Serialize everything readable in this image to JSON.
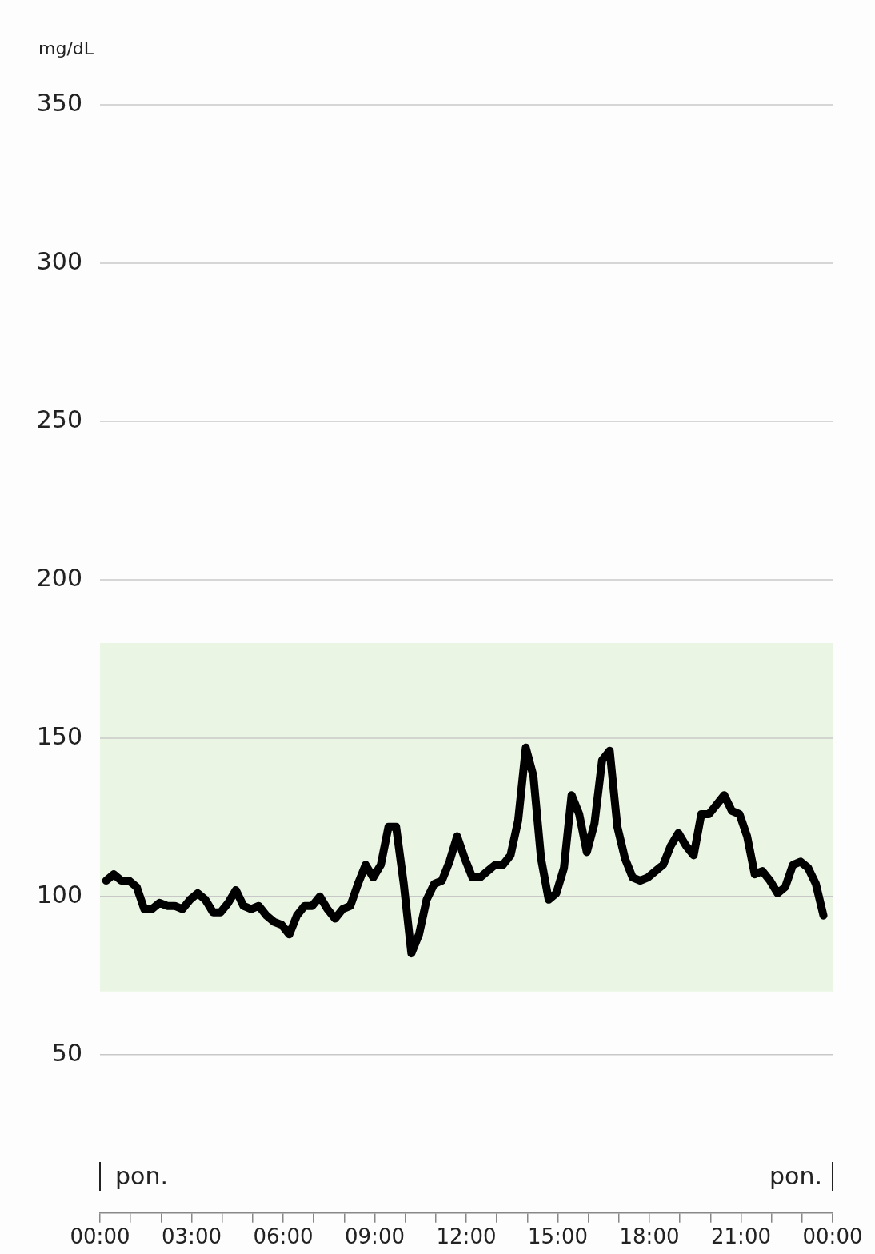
{
  "chart_data": {
    "type": "line",
    "ylabel": "mg/dL",
    "x": [
      0.2,
      0.45,
      0.7,
      0.95,
      1.2,
      1.45,
      1.7,
      1.95,
      2.2,
      2.45,
      2.7,
      2.95,
      3.2,
      3.45,
      3.7,
      3.95,
      4.2,
      4.45,
      4.7,
      4.95,
      5.2,
      5.45,
      5.7,
      5.95,
      6.2,
      6.45,
      6.7,
      6.95,
      7.2,
      7.45,
      7.7,
      7.95,
      8.2,
      8.45,
      8.7,
      8.95,
      9.2,
      9.45,
      9.7,
      9.95,
      10.2,
      10.45,
      10.7,
      10.95,
      11.2,
      11.45,
      11.7,
      11.95,
      12.2,
      12.45,
      12.7,
      12.95,
      13.2,
      13.45,
      13.7,
      13.95,
      14.2,
      14.45,
      14.7,
      14.95,
      15.2,
      15.45,
      15.7,
      15.95,
      16.2,
      16.45,
      16.7,
      16.95,
      17.2,
      17.45,
      17.7,
      17.95,
      18.2,
      18.45,
      18.7,
      18.95,
      19.2,
      19.45,
      19.7,
      19.95,
      20.2,
      20.45,
      20.7,
      20.95,
      21.2,
      21.45,
      21.7,
      21.95,
      22.2,
      22.45,
      22.7,
      22.95,
      23.2,
      23.45,
      23.7
    ],
    "series": [
      {
        "color": "#000000",
        "values": [
          105,
          107,
          105,
          105,
          103,
          96,
          96,
          98,
          97,
          97,
          96,
          99,
          101,
          99,
          95,
          95,
          98,
          102,
          97,
          96,
          97,
          94,
          92,
          91,
          88,
          94,
          97,
          97,
          100,
          96,
          93,
          96,
          97,
          104,
          110,
          106,
          110,
          122,
          122,
          104,
          82,
          88,
          99,
          104,
          105,
          111,
          119,
          112,
          106,
          106,
          108,
          110,
          110,
          113,
          124,
          147,
          138,
          112,
          99,
          101,
          109,
          132,
          126,
          114,
          123,
          143,
          146,
          122,
          112,
          106,
          105,
          106,
          108,
          110,
          116,
          120,
          116,
          113,
          126,
          126,
          129,
          132,
          127,
          126,
          119,
          107,
          108,
          105,
          101,
          103,
          110,
          111,
          109,
          104,
          94
        ]
      }
    ],
    "xlim": [
      0,
      24
    ],
    "xticks": [
      {
        "value": 0,
        "label": "00:00"
      },
      {
        "value": 1,
        "label": null
      },
      {
        "value": 2,
        "label": null
      },
      {
        "value": 3,
        "label": "03:00"
      },
      {
        "value": 4,
        "label": null
      },
      {
        "value": 5,
        "label": null
      },
      {
        "value": 6,
        "label": "06:00"
      },
      {
        "value": 7,
        "label": null
      },
      {
        "value": 8,
        "label": null
      },
      {
        "value": 9,
        "label": "09:00"
      },
      {
        "value": 10,
        "label": null
      },
      {
        "value": 11,
        "label": null
      },
      {
        "value": 12,
        "label": "12:00"
      },
      {
        "value": 13,
        "label": null
      },
      {
        "value": 14,
        "label": null
      },
      {
        "value": 15,
        "label": "15:00"
      },
      {
        "value": 16,
        "label": null
      },
      {
        "value": 17,
        "label": null
      },
      {
        "value": 18,
        "label": "18:00"
      },
      {
        "value": 19,
        "label": null
      },
      {
        "value": 20,
        "label": null
      },
      {
        "value": 21,
        "label": "21:00"
      },
      {
        "value": 22,
        "label": null
      },
      {
        "value": 23,
        "label": null
      },
      {
        "value": 24,
        "label": "00:00"
      }
    ],
    "ylim": [
      0,
      350
    ],
    "yticks": [
      50,
      100,
      150,
      200,
      250,
      300,
      350
    ],
    "grid": "y",
    "legend": false,
    "marker": "none",
    "line_style": "solid",
    "bands": [
      {
        "axis": "y",
        "from": 70,
        "to": 180,
        "color": "#ebf5e4"
      }
    ],
    "annotations": [
      "pon.",
      "pon."
    ]
  }
}
